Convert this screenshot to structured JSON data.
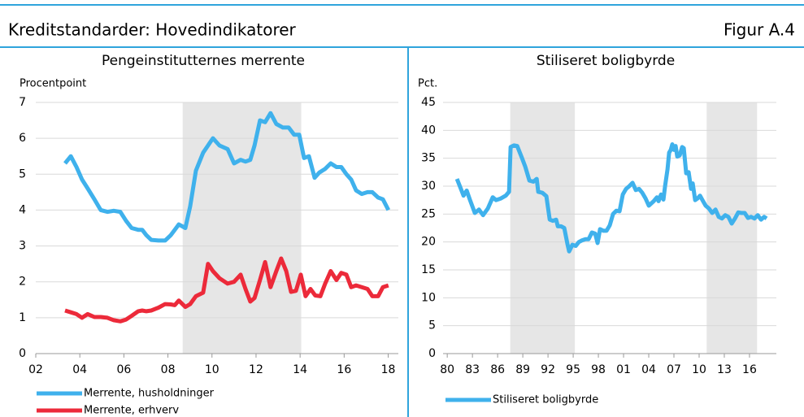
{
  "header": {
    "title": "Kreditstandarder: Hovedindikatorer",
    "figure": "Figur A.4"
  },
  "chart_data": [
    {
      "type": "line",
      "title": "Pengeinstitutternes merrente",
      "y_label": "Procentpoint",
      "xlim": [
        2002,
        2018.46
      ],
      "ylim": [
        0,
        7
      ],
      "yticks": [
        0,
        1,
        2,
        3,
        4,
        5,
        6,
        7
      ],
      "xticks": [
        {
          "value": 2002,
          "label": "02"
        },
        {
          "value": 2004,
          "label": "04"
        },
        {
          "value": 2006,
          "label": "06"
        },
        {
          "value": 2008,
          "label": "08"
        },
        {
          "value": 2010,
          "label": "10"
        },
        {
          "value": 2012,
          "label": "12"
        },
        {
          "value": 2014,
          "label": "14"
        },
        {
          "value": 2016,
          "label": "16"
        },
        {
          "value": 2018,
          "label": "18"
        }
      ],
      "grid": true,
      "legend": "bottom",
      "shaded": [
        [
          2008.67,
          2014.05
        ]
      ],
      "shade_color": "#e6e6e6",
      "series": [
        {
          "name": "Merrente, husholdninger",
          "color": "#3fb1ec",
          "x": [
            2003.33,
            2003.59,
            2003.85,
            2004.1,
            2004.36,
            2004.66,
            2004.95,
            2005.25,
            2005.54,
            2005.84,
            2006.1,
            2006.35,
            2006.65,
            2006.83,
            2007.02,
            2007.24,
            2007.57,
            2007.87,
            2008.13,
            2008.31,
            2008.49,
            2008.79,
            2009.01,
            2009.27,
            2009.6,
            2010.04,
            2010.34,
            2010.71,
            2011.0,
            2011.3,
            2011.52,
            2011.74,
            2011.93,
            2012.18,
            2012.41,
            2012.66,
            2012.92,
            2013.22,
            2013.48,
            2013.73,
            2013.96,
            2014.18,
            2014.4,
            2014.66,
            2014.88,
            2015.14,
            2015.39,
            2015.65,
            2015.87,
            2016.1,
            2016.32,
            2016.54,
            2016.8,
            2017.06,
            2017.28,
            2017.54,
            2017.76,
            2018.01
          ],
          "values": [
            5.3,
            5.5,
            5.2,
            4.85,
            4.6,
            4.3,
            4.0,
            3.95,
            3.98,
            3.95,
            3.7,
            3.5,
            3.45,
            3.45,
            3.3,
            3.17,
            3.15,
            3.15,
            3.3,
            3.45,
            3.6,
            3.5,
            4.1,
            5.1,
            5.6,
            6.0,
            5.8,
            5.7,
            5.3,
            5.4,
            5.35,
            5.4,
            5.8,
            6.5,
            6.45,
            6.7,
            6.4,
            6.3,
            6.3,
            6.1,
            6.1,
            5.45,
            5.5,
            4.9,
            5.05,
            5.15,
            5.3,
            5.2,
            5.2,
            5.0,
            4.85,
            4.55,
            4.45,
            4.5,
            4.5,
            4.35,
            4.3,
            4.0
          ]
        },
        {
          "name": "Merrente, erhverv",
          "color": "#ec2a3a",
          "x": [
            2003.33,
            2003.59,
            2003.85,
            2004.1,
            2004.36,
            2004.66,
            2004.95,
            2005.25,
            2005.54,
            2005.84,
            2006.1,
            2006.35,
            2006.65,
            2006.83,
            2007.02,
            2007.24,
            2007.57,
            2007.87,
            2008.13,
            2008.31,
            2008.49,
            2008.79,
            2009.01,
            2009.27,
            2009.6,
            2009.82,
            2010.04,
            2010.34,
            2010.71,
            2011.0,
            2011.3,
            2011.52,
            2011.74,
            2011.93,
            2012.18,
            2012.41,
            2012.66,
            2012.92,
            2013.14,
            2013.37,
            2013.59,
            2013.81,
            2014.03,
            2014.25,
            2014.47,
            2014.69,
            2014.92,
            2015.14,
            2015.39,
            2015.65,
            2015.87,
            2016.1,
            2016.32,
            2016.54,
            2016.8,
            2017.06,
            2017.28,
            2017.54,
            2017.76,
            2018.01
          ],
          "values": [
            1.2,
            1.15,
            1.1,
            1.0,
            1.1,
            1.02,
            1.02,
            1.0,
            0.93,
            0.9,
            0.95,
            1.05,
            1.18,
            1.2,
            1.18,
            1.2,
            1.28,
            1.38,
            1.37,
            1.35,
            1.48,
            1.3,
            1.38,
            1.6,
            1.7,
            2.5,
            2.3,
            2.1,
            1.95,
            2.0,
            2.2,
            1.8,
            1.45,
            1.55,
            2.05,
            2.55,
            1.85,
            2.3,
            2.65,
            2.3,
            1.72,
            1.75,
            2.2,
            1.6,
            1.8,
            1.62,
            1.6,
            1.95,
            2.3,
            2.05,
            2.25,
            2.2,
            1.85,
            1.9,
            1.85,
            1.8,
            1.6,
            1.6,
            1.85,
            1.9
          ]
        }
      ]
    },
    {
      "type": "line",
      "title": "Stiliseret boligbyrde",
      "y_label": "Pct.",
      "xlim": [
        1979.5,
        2019.2
      ],
      "ylim": [
        0,
        45
      ],
      "yticks": [
        0,
        5,
        10,
        15,
        20,
        25,
        30,
        35,
        40,
        45
      ],
      "xticks": [
        {
          "value": 1980,
          "label": "80"
        },
        {
          "value": 1983,
          "label": "83"
        },
        {
          "value": 1986,
          "label": "86"
        },
        {
          "value": 1989,
          "label": "89"
        },
        {
          "value": 1992,
          "label": "92"
        },
        {
          "value": 1995,
          "label": "95"
        },
        {
          "value": 1998,
          "label": "98"
        },
        {
          "value": 2001,
          "label": "01"
        },
        {
          "value": 2004,
          "label": "04"
        },
        {
          "value": 2007,
          "label": "07"
        },
        {
          "value": 2010,
          "label": "10"
        },
        {
          "value": 2013,
          "label": "13"
        },
        {
          "value": 2016,
          "label": "16"
        }
      ],
      "grid": true,
      "legend": "bottom",
      "shaded": [
        [
          1987.5,
          1995.2
        ],
        [
          2010.9,
          2016.9
        ]
      ],
      "shade_color": "#e6e6e6",
      "series": [
        {
          "name": "Stiliseret boligbyrde",
          "color": "#3fb1ec",
          "x": [
            1981.16,
            1981.55,
            1981.94,
            1982.32,
            1982.71,
            1983.29,
            1983.78,
            1984.26,
            1984.84,
            1985.42,
            1985.81,
            1986.39,
            1986.97,
            1987.36,
            1987.55,
            1987.94,
            1988.33,
            1988.91,
            1989.29,
            1989.78,
            1990.26,
            1990.65,
            1990.84,
            1991.33,
            1991.81,
            1992.2,
            1992.58,
            1992.97,
            1993.17,
            1993.55,
            1993.94,
            1994.33,
            1994.52,
            1994.91,
            1995.3,
            1995.68,
            1996.07,
            1996.46,
            1996.84,
            1997.23,
            1997.62,
            1997.91,
            1998.2,
            1998.59,
            1998.97,
            1999.36,
            1999.75,
            2000.14,
            2000.52,
            2000.91,
            2001.3,
            2001.68,
            2002.07,
            2002.46,
            2002.85,
            2003.23,
            2003.62,
            2004.01,
            2004.59,
            2004.98,
            2005.17,
            2005.46,
            2005.75,
            2005.94,
            2006.23,
            2006.43,
            2006.62,
            2006.81,
            2007.01,
            2007.2,
            2007.4,
            2007.69,
            2007.98,
            2008.17,
            2008.46,
            2008.75,
            2009.04,
            2009.24,
            2009.53,
            2009.82,
            2010.11,
            2010.4,
            2010.78,
            2011.17,
            2011.56,
            2011.95,
            2012.33,
            2012.72,
            2013.11,
            2013.49,
            2013.88,
            2014.27,
            2014.66,
            2015.04,
            2015.43,
            2015.82,
            2016.2,
            2016.59,
            2016.98,
            2017.37,
            2017.75,
            2018.04
          ],
          "values": [
            31.3,
            29.8,
            28.3,
            29.2,
            27.5,
            25.2,
            25.8,
            24.8,
            26,
            28,
            27.5,
            27.8,
            28.3,
            29,
            37,
            37.3,
            37.2,
            35,
            33.5,
            31,
            30.8,
            31.3,
            29,
            28.8,
            28.2,
            24,
            23.8,
            24,
            22.8,
            22.8,
            22.5,
            19.5,
            18.3,
            19.5,
            19.3,
            20,
            20.3,
            20.5,
            20.5,
            21.7,
            21.5,
            19.8,
            22.3,
            22,
            22,
            23,
            25,
            25.6,
            25.5,
            28.5,
            29.5,
            30,
            30.6,
            29.3,
            29.5,
            28.8,
            27.8,
            26.5,
            27.3,
            28,
            27.3,
            28.5,
            27.6,
            30,
            33,
            36,
            36.5,
            37.5,
            36.5,
            37.2,
            35.3,
            35.5,
            37,
            36.8,
            32.3,
            32.5,
            29.5,
            30.5,
            27.5,
            27.8,
            28.3,
            27.5,
            26.5,
            26,
            25.2,
            25.8,
            24.5,
            24.2,
            24.8,
            24.5,
            23.3,
            24.2,
            25.3,
            25.2,
            25.2,
            24.3,
            24.5,
            24.2,
            24.8,
            24,
            24.5,
            24.2
          ]
        }
      ]
    }
  ]
}
